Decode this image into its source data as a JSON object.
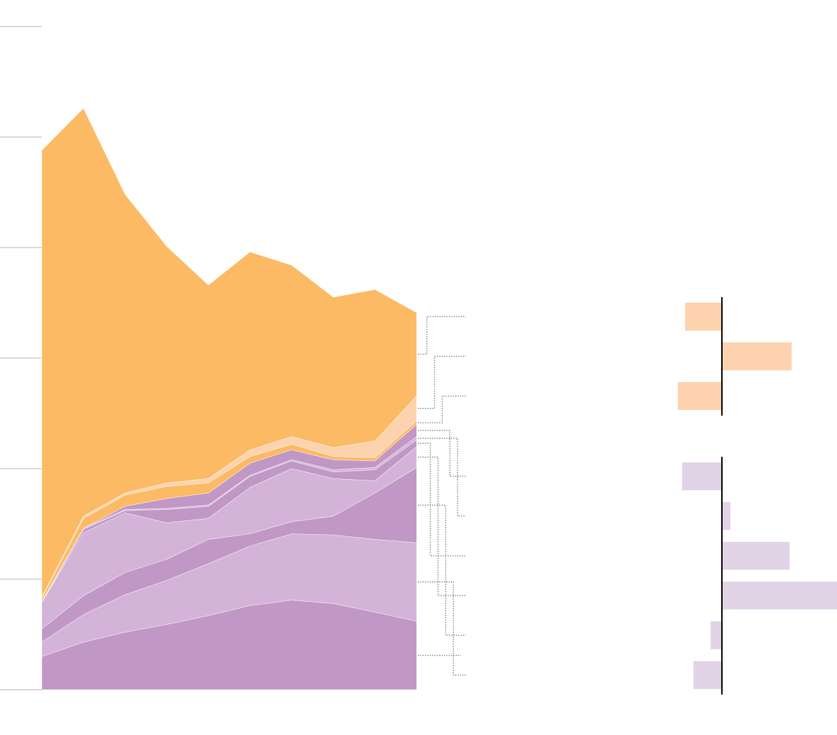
{
  "chart_data": [
    {
      "type": "area",
      "stacked": true,
      "title": "",
      "xlabel": "",
      "ylabel": "",
      "ylim": [
        0,
        6
      ],
      "yticks": [
        0,
        1,
        2,
        3,
        4,
        5,
        6
      ],
      "grid": false,
      "x": [
        0,
        1,
        2,
        3,
        4,
        5,
        6,
        7,
        8,
        9
      ],
      "series": [
        {
          "color": "#c197c6",
          "values": [
            0.3,
            0.43,
            0.52,
            0.59,
            0.67,
            0.76,
            0.81,
            0.78,
            0.7,
            0.62
          ]
        },
        {
          "color": "#d3b4d8",
          "values": [
            0.13,
            0.25,
            0.34,
            0.4,
            0.47,
            0.54,
            0.6,
            0.62,
            0.66,
            0.71
          ]
        },
        {
          "color": "#c197c6",
          "values": [
            0.12,
            0.17,
            0.2,
            0.19,
            0.22,
            0.11,
            0.11,
            0.17,
            0.42,
            0.68
          ]
        },
        {
          "color": "#d3b4d8",
          "values": [
            0.24,
            0.57,
            0.54,
            0.33,
            0.19,
            0.42,
            0.48,
            0.34,
            0.11,
            0.19
          ]
        },
        {
          "color": "#c197c6",
          "values": [
            0,
            0.03,
            0.02,
            0.12,
            0.11,
            0.1,
            0.07,
            0.06,
            0.1,
            0.06
          ]
        },
        {
          "color": "#d3b4d8",
          "values": [
            0.01,
            0.01,
            0.01,
            0.01,
            0.01,
            0.01,
            0.01,
            0.02,
            0.02,
            0.03
          ]
        },
        {
          "color": "#c197c6",
          "values": [
            0,
            0,
            0.03,
            0.09,
            0.11,
            0.11,
            0.09,
            0.09,
            0.06,
            0.11
          ]
        },
        {
          "color": "#fbba63",
          "values": [
            0.03,
            0.09,
            0.1,
            0.11,
            0.09,
            0.06,
            0.05,
            0.03,
            0.03,
            0.03
          ]
        },
        {
          "color": "#fcd3ae",
          "values": [
            0.01,
            0.02,
            0.02,
            0.03,
            0.04,
            0.06,
            0.07,
            0.08,
            0.15,
            0.23
          ]
        },
        {
          "color": "#fbba63",
          "values": [
            4.04,
            3.69,
            2.7,
            2.14,
            1.75,
            1.79,
            1.55,
            1.36,
            1.37,
            0.75
          ]
        }
      ]
    },
    {
      "type": "bar",
      "orientation": "horizontal",
      "title": "",
      "groups": [
        {
          "color": "#fcd3ae",
          "values": [
            -0.52,
            0.98,
            -0.62
          ]
        },
        {
          "color": "#e3d3e7",
          "values": [
            -0.56,
            0.12,
            0.95,
            1.62,
            -0.16,
            -0.4
          ]
        }
      ]
    }
  ]
}
